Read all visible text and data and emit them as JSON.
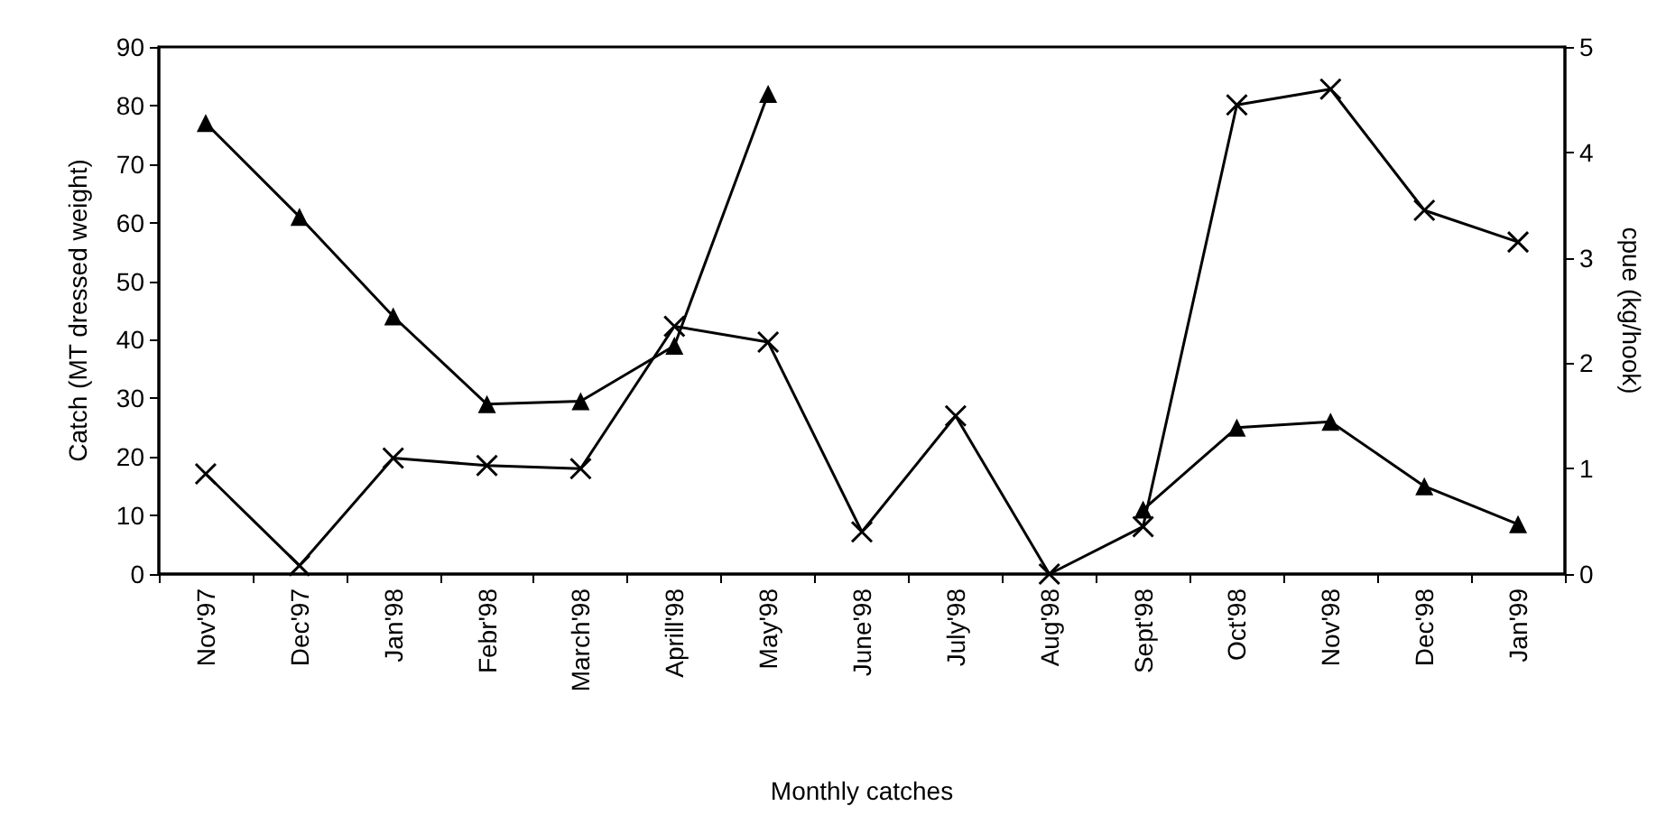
{
  "chart_data": {
    "type": "line",
    "xlabel": "Monthly catches",
    "ylabel": "Catch (MT dressed weight)",
    "y2label": "cpue (kg/hook)",
    "categories": [
      "Nov'97",
      "Dec'97",
      "Jan'98",
      "Febr'98",
      "March'98",
      "Aprill'98",
      "May'98",
      "June'98",
      "July'98",
      "Aug'98",
      "Sept'98",
      "Oct'98",
      "Nov'98",
      "Dec'98",
      "Jan'99"
    ],
    "series": [
      {
        "color": "#000000",
        "marker": "triangle",
        "values": [
          77,
          61,
          44,
          29,
          29.5,
          39,
          82,
          null,
          null,
          null,
          11,
          25,
          26,
          15,
          8.5
        ]
      },
      {
        "color": "#000000",
        "marker": "cross",
        "axis": "y2",
        "values": [
          0.95,
          0.08,
          1.1,
          1.03,
          1.0,
          2.35,
          2.2,
          0.4,
          1.5,
          0,
          0.45,
          4.45,
          4.6,
          3.45,
          3.15
        ]
      }
    ],
    "ylim": [
      0,
      90
    ],
    "yticks": [
      0,
      10,
      20,
      30,
      40,
      50,
      60,
      70,
      80,
      90
    ],
    "y2lim": [
      0,
      5
    ],
    "y2ticks": [
      0,
      1,
      2,
      3,
      4,
      5
    ],
    "line_style": "solid"
  }
}
